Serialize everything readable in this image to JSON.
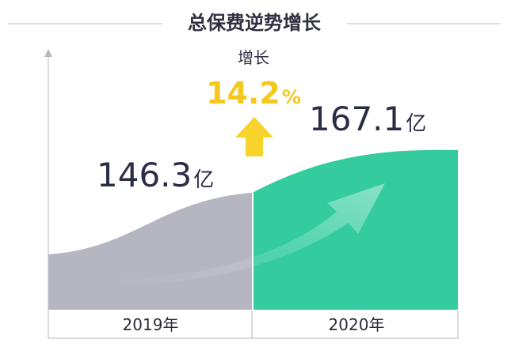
{
  "chart_data": {
    "type": "area",
    "title": "总保费逆势增长",
    "categories": [
      "2019年",
      "2020年"
    ],
    "values": [
      146.3,
      167.1
    ],
    "unit": "亿",
    "value_labels": [
      "146.3",
      "167.1"
    ],
    "growth": {
      "label": "增长",
      "value": "14.2",
      "unit": "%"
    },
    "grid": false,
    "legend": "none"
  },
  "colors": {
    "title": "#2f3140",
    "value_text": "#2a2d45",
    "growth_number": "#f5c81e",
    "arrow_fill": "#f8d32b",
    "bar_2019": "#b6b6c2",
    "bar_2020": "#34cc9f",
    "axis": "#b8b8b8"
  },
  "icons": {
    "growth_arrow": "up-arrow-icon",
    "trend_arrow": "curved-arrow-icon"
  }
}
